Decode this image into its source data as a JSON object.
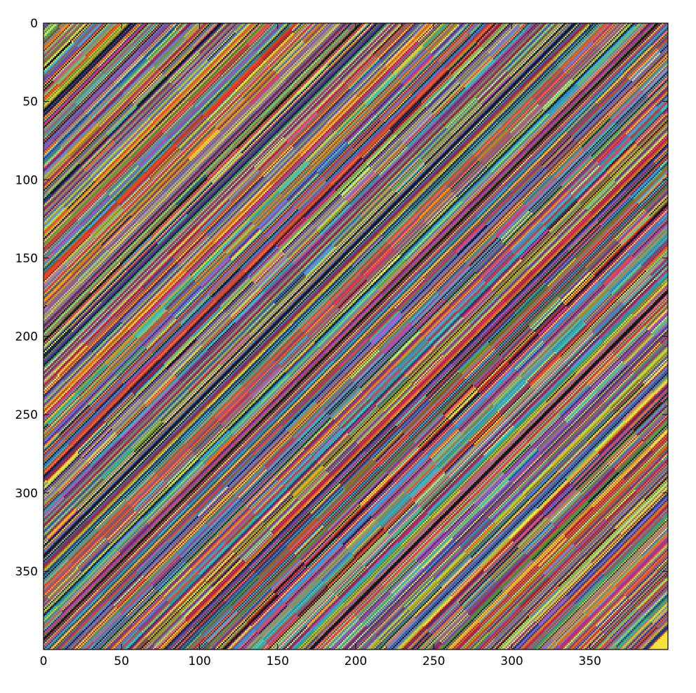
{
  "chart_data": {
    "type": "heatmap",
    "title": "",
    "xlabel": "",
    "ylabel": "",
    "rows": 400,
    "cols": 400,
    "xlim": [
      0,
      400
    ],
    "ylim": [
      400,
      0
    ],
    "x_ticks": [
      0,
      50,
      100,
      150,
      200,
      250,
      300,
      350
    ],
    "y_ticks": [
      0,
      50,
      100,
      150,
      200,
      250,
      300,
      350
    ],
    "x_tick_labels": [
      "0",
      "50",
      "100",
      "150",
      "200",
      "250",
      "300",
      "350"
    ],
    "y_tick_labels": [
      "0",
      "50",
      "100",
      "150",
      "200",
      "250",
      "300",
      "350"
    ],
    "pattern": "diagonal stripes running from lower-left to upper-right; pixel color depends on (row + col)",
    "palette": [
      "#1f3d8f",
      "#e8412a",
      "#2bb6c9",
      "#f2a31b",
      "#d2399a",
      "#5b9a3b",
      "#101820",
      "#8a6fd1",
      "#f26d2e",
      "#3f88d6",
      "#c7d93a",
      "#b0223a",
      "#49c2a8",
      "#f0e04a",
      "#6b3fa0"
    ],
    "corner_color_bottom_right": "#f7e23c",
    "grid": false,
    "legend": "none"
  }
}
